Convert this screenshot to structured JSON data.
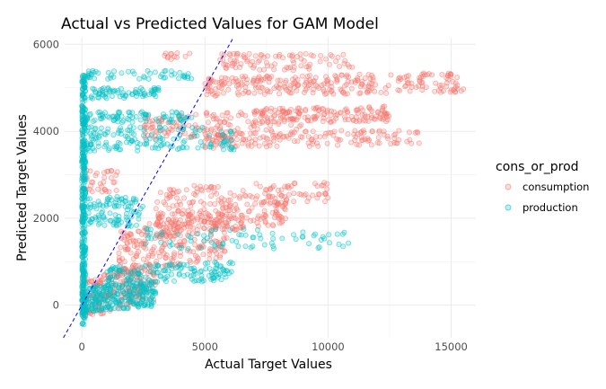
{
  "chart_data": {
    "type": "scatter",
    "title": "Actual vs Predicted Values for GAM Model",
    "xlabel": "Actual Target Values",
    "ylabel": "Predicted Target Values",
    "xlim": [
      -700,
      16000
    ],
    "ylim": [
      -750,
      6150
    ],
    "x_ticks": [
      0,
      5000,
      10000,
      15000
    ],
    "y_ticks": [
      0,
      2000,
      4000,
      6000
    ],
    "grid": true,
    "legend_title": "cons_or_prod",
    "legend_position": "right",
    "reference_line": {
      "type": "y=x",
      "style": "dashed",
      "color": "#0000ff"
    },
    "series": [
      {
        "name": "consumption",
        "color": "#f8766d",
        "clusters": [
          {
            "x": [
              0,
              3000
            ],
            "y": [
              -100,
              800
            ],
            "trend": 0.28,
            "n": 220
          },
          {
            "x": [
              1500,
              6000
            ],
            "y": [
              900,
              2000
            ],
            "trend": 0.2,
            "n": 230
          },
          {
            "x": [
              3000,
              8500
            ],
            "y": [
              1700,
              2300
            ],
            "trend": 0.12,
            "n": 200
          },
          {
            "x": [
              3000,
              10000
            ],
            "y": [
              2300,
              2800
            ],
            "trend": 0.05,
            "n": 130
          },
          {
            "x": [
              0,
              1500
            ],
            "y": [
              2600,
              3100
            ],
            "trend": 0,
            "n": 35
          },
          {
            "x": [
              2500,
              9000
            ],
            "y": [
              3900,
              4450
            ],
            "trend": 0.06,
            "n": 150
          },
          {
            "x": [
              5000,
              13800
            ],
            "y": [
              3650,
              4000
            ],
            "trend": 0.02,
            "n": 160
          },
          {
            "x": [
              7000,
              12500
            ],
            "y": [
              4200,
              4550
            ],
            "trend": 0.02,
            "n": 140
          },
          {
            "x": [
              5000,
              15500
            ],
            "y": [
              4850,
              5300
            ],
            "trend": 0.02,
            "n": 280
          },
          {
            "x": [
              5500,
              11000
            ],
            "y": [
              5400,
              5800
            ],
            "trend": 0,
            "n": 90
          },
          {
            "x": [
              3300,
              4500
            ],
            "y": [
              5650,
              5800
            ],
            "trend": 0,
            "n": 12
          }
        ]
      },
      {
        "name": "production",
        "color": "#00bfc4",
        "clusters": [
          {
            "x": [
              0,
              150
            ],
            "y": [
              -450,
              5300
            ],
            "trend": 0,
            "n": 380
          },
          {
            "x": [
              0,
              3000
            ],
            "y": [
              -100,
              500
            ],
            "trend": 0.1,
            "n": 260
          },
          {
            "x": [
              1000,
              6200
            ],
            "y": [
              500,
              950
            ],
            "trend": 0.05,
            "n": 160
          },
          {
            "x": [
              2500,
              11000
            ],
            "y": [
              1300,
              1750
            ],
            "trend": 0,
            "n": 80
          },
          {
            "x": [
              0,
              2500
            ],
            "y": [
              1800,
              2500
            ],
            "trend": 0,
            "n": 110
          },
          {
            "x": [
              200,
              6200
            ],
            "y": [
              3550,
              4100
            ],
            "trend": 0,
            "n": 150
          },
          {
            "x": [
              200,
              4500
            ],
            "y": [
              4200,
              4450
            ],
            "trend": 0,
            "n": 80
          },
          {
            "x": [
              200,
              3200
            ],
            "y": [
              4750,
              5000
            ],
            "trend": 0,
            "n": 70
          },
          {
            "x": [
              200,
              4500
            ],
            "y": [
              5200,
              5400
            ],
            "trend": 0,
            "n": 50
          }
        ]
      }
    ]
  }
}
